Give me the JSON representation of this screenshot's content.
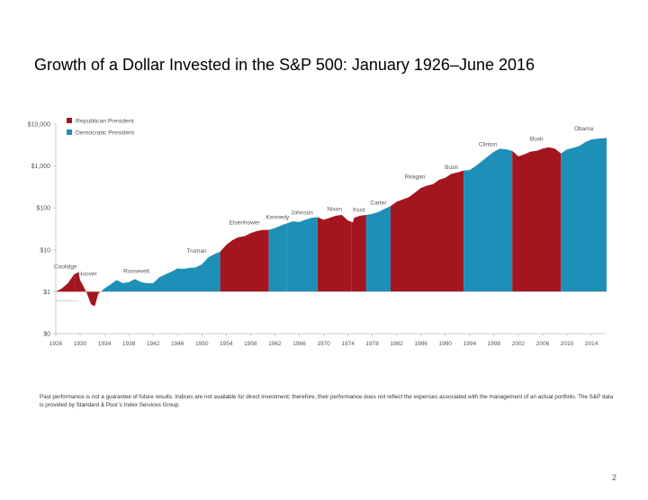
{
  "slide": {
    "title": "Growth of a Dollar Invested in the S&P 500: January 1926–June 2016",
    "footnote": "Past performance is not a guarantee of future results. Indices are not available for direct investment; therefore, their performance does not reflect the expenses associated with the management of an actual portfolio. The S&P data is provided by Standard & Poor’s Index Services Group.",
    "page_number": "2"
  },
  "colors": {
    "republican": "#a3161f",
    "democratic": "#1e8fb7",
    "baseline": "#c0c0c0",
    "axis_text": "#555555"
  },
  "chart_data": {
    "type": "area",
    "title": "",
    "y_scale": "log",
    "ylim": [
      0.1,
      10000
    ],
    "xlim": [
      1926,
      2016.5
    ],
    "grid": false,
    "legend_position": "top-left",
    "legend": [
      {
        "label": "Republican President",
        "party": "republican"
      },
      {
        "label": "Democratic President",
        "party": "democratic"
      }
    ],
    "y_ticks": [
      {
        "value": 10000,
        "label": "$10,000"
      },
      {
        "value": 1000,
        "label": "$1,000"
      },
      {
        "value": 100,
        "label": "$100"
      },
      {
        "value": 10,
        "label": "$10"
      },
      {
        "value": 1,
        "label": "$1"
      },
      {
        "value": 0.1,
        "label": "$0"
      }
    ],
    "x_ticks": [
      "1926",
      "1930",
      "1934",
      "1938",
      "1942",
      "1946",
      "1950",
      "1954",
      "1958",
      "1962",
      "1966",
      "1970",
      "1974",
      "1978",
      "1982",
      "1986",
      "1990",
      "1994",
      "1998",
      "2002",
      "2006",
      "2010",
      "2014"
    ],
    "baseline_value": 1,
    "presidents": [
      {
        "label": "Coolidge",
        "start": 1926,
        "end": 1929.2,
        "party": "republican",
        "label_value": 3.6
      },
      {
        "label": "Hoover",
        "start": 1929.2,
        "end": 1933.2,
        "party": "republican",
        "label_value": 2.4
      },
      {
        "label": "Roosevelt",
        "start": 1933.2,
        "end": 1945.3,
        "party": "democratic",
        "label_value": 2.8
      },
      {
        "label": "Truman",
        "start": 1945.3,
        "end": 1953,
        "party": "democratic",
        "label_value": 8.5
      },
      {
        "label": "Eisenhower",
        "start": 1953,
        "end": 1961,
        "party": "republican",
        "label_value": 40
      },
      {
        "label": "Kennedy",
        "start": 1961,
        "end": 1963.9,
        "party": "democratic",
        "label_value": 55
      },
      {
        "label": "Johnson",
        "start": 1963.9,
        "end": 1969,
        "party": "democratic",
        "label_value": 70
      },
      {
        "label": "Nixon",
        "start": 1969,
        "end": 1974.6,
        "party": "republican",
        "label_value": 85
      },
      {
        "label": "Ford",
        "start": 1974.6,
        "end": 1977,
        "party": "republican",
        "label_value": 80
      },
      {
        "label": "Carter",
        "start": 1977,
        "end": 1981,
        "party": "democratic",
        "label_value": 120
      },
      {
        "label": "Reagan",
        "start": 1981,
        "end": 1989,
        "party": "republican",
        "label_value": 500
      },
      {
        "label": "Bush",
        "start": 1989,
        "end": 1993,
        "party": "republican",
        "label_value": 850
      },
      {
        "label": "Clinton",
        "start": 1993,
        "end": 2001,
        "party": "democratic",
        "label_value": 3000
      },
      {
        "label": "Bush",
        "start": 2001,
        "end": 2009,
        "party": "republican",
        "label_value": 4000
      },
      {
        "label": "Obama",
        "start": 2009,
        "end": 2016.5,
        "party": "democratic",
        "label_value": 7000
      }
    ],
    "series": [
      {
        "x": [
          1926,
          1927,
          1928,
          1929,
          1929.7,
          1930,
          1931,
          1931.8,
          1932.4,
          1933,
          1934,
          1935,
          1936,
          1937,
          1938,
          1939,
          1940,
          1941,
          1942,
          1943,
          1944,
          1945,
          1946,
          1947,
          1948,
          1949,
          1950,
          1951,
          1952,
          1953,
          1954,
          1955,
          1956,
          1957,
          1958,
          1959,
          1960,
          1961,
          1962,
          1963,
          1964,
          1965,
          1966,
          1967,
          1968,
          1969,
          1970,
          1971,
          1972,
          1973,
          1974,
          1974.8,
          1975,
          1976,
          1977,
          1978,
          1979,
          1980,
          1981,
          1982,
          1983,
          1984,
          1985,
          1986,
          1987,
          1988,
          1989,
          1990,
          1991,
          1992,
          1993,
          1994,
          1995,
          1996,
          1997,
          1998,
          1999,
          2000,
          2001,
          2002,
          2003,
          2004,
          2005,
          2006,
          2007,
          2008,
          2009,
          2010,
          2011,
          2012,
          2013,
          2014,
          2015,
          2016,
          2016.5
        ],
        "values": [
          1.0,
          1.2,
          1.6,
          2.6,
          2.9,
          1.9,
          1.0,
          0.5,
          0.45,
          0.9,
          1.2,
          1.5,
          1.9,
          1.6,
          1.7,
          2.0,
          1.7,
          1.6,
          1.6,
          2.2,
          2.6,
          3.0,
          3.6,
          3.5,
          3.7,
          3.8,
          4.5,
          6.5,
          7.8,
          9.0,
          13,
          17,
          20,
          21,
          25,
          28,
          30,
          30,
          33,
          38,
          43,
          48,
          46,
          52,
          58,
          60,
          52,
          58,
          65,
          68,
          50,
          45,
          58,
          65,
          68,
          72,
          80,
          95,
          110,
          140,
          160,
          180,
          230,
          300,
          340,
          370,
          470,
          520,
          650,
          700,
          780,
          800,
          1000,
          1300,
          1700,
          2200,
          2600,
          2500,
          2300,
          1700,
          1900,
          2200,
          2300,
          2600,
          2800,
          2600,
          2000,
          2500,
          2700,
          3000,
          3700,
          4300,
          4500,
          4600,
          4700
        ]
      }
    ]
  }
}
